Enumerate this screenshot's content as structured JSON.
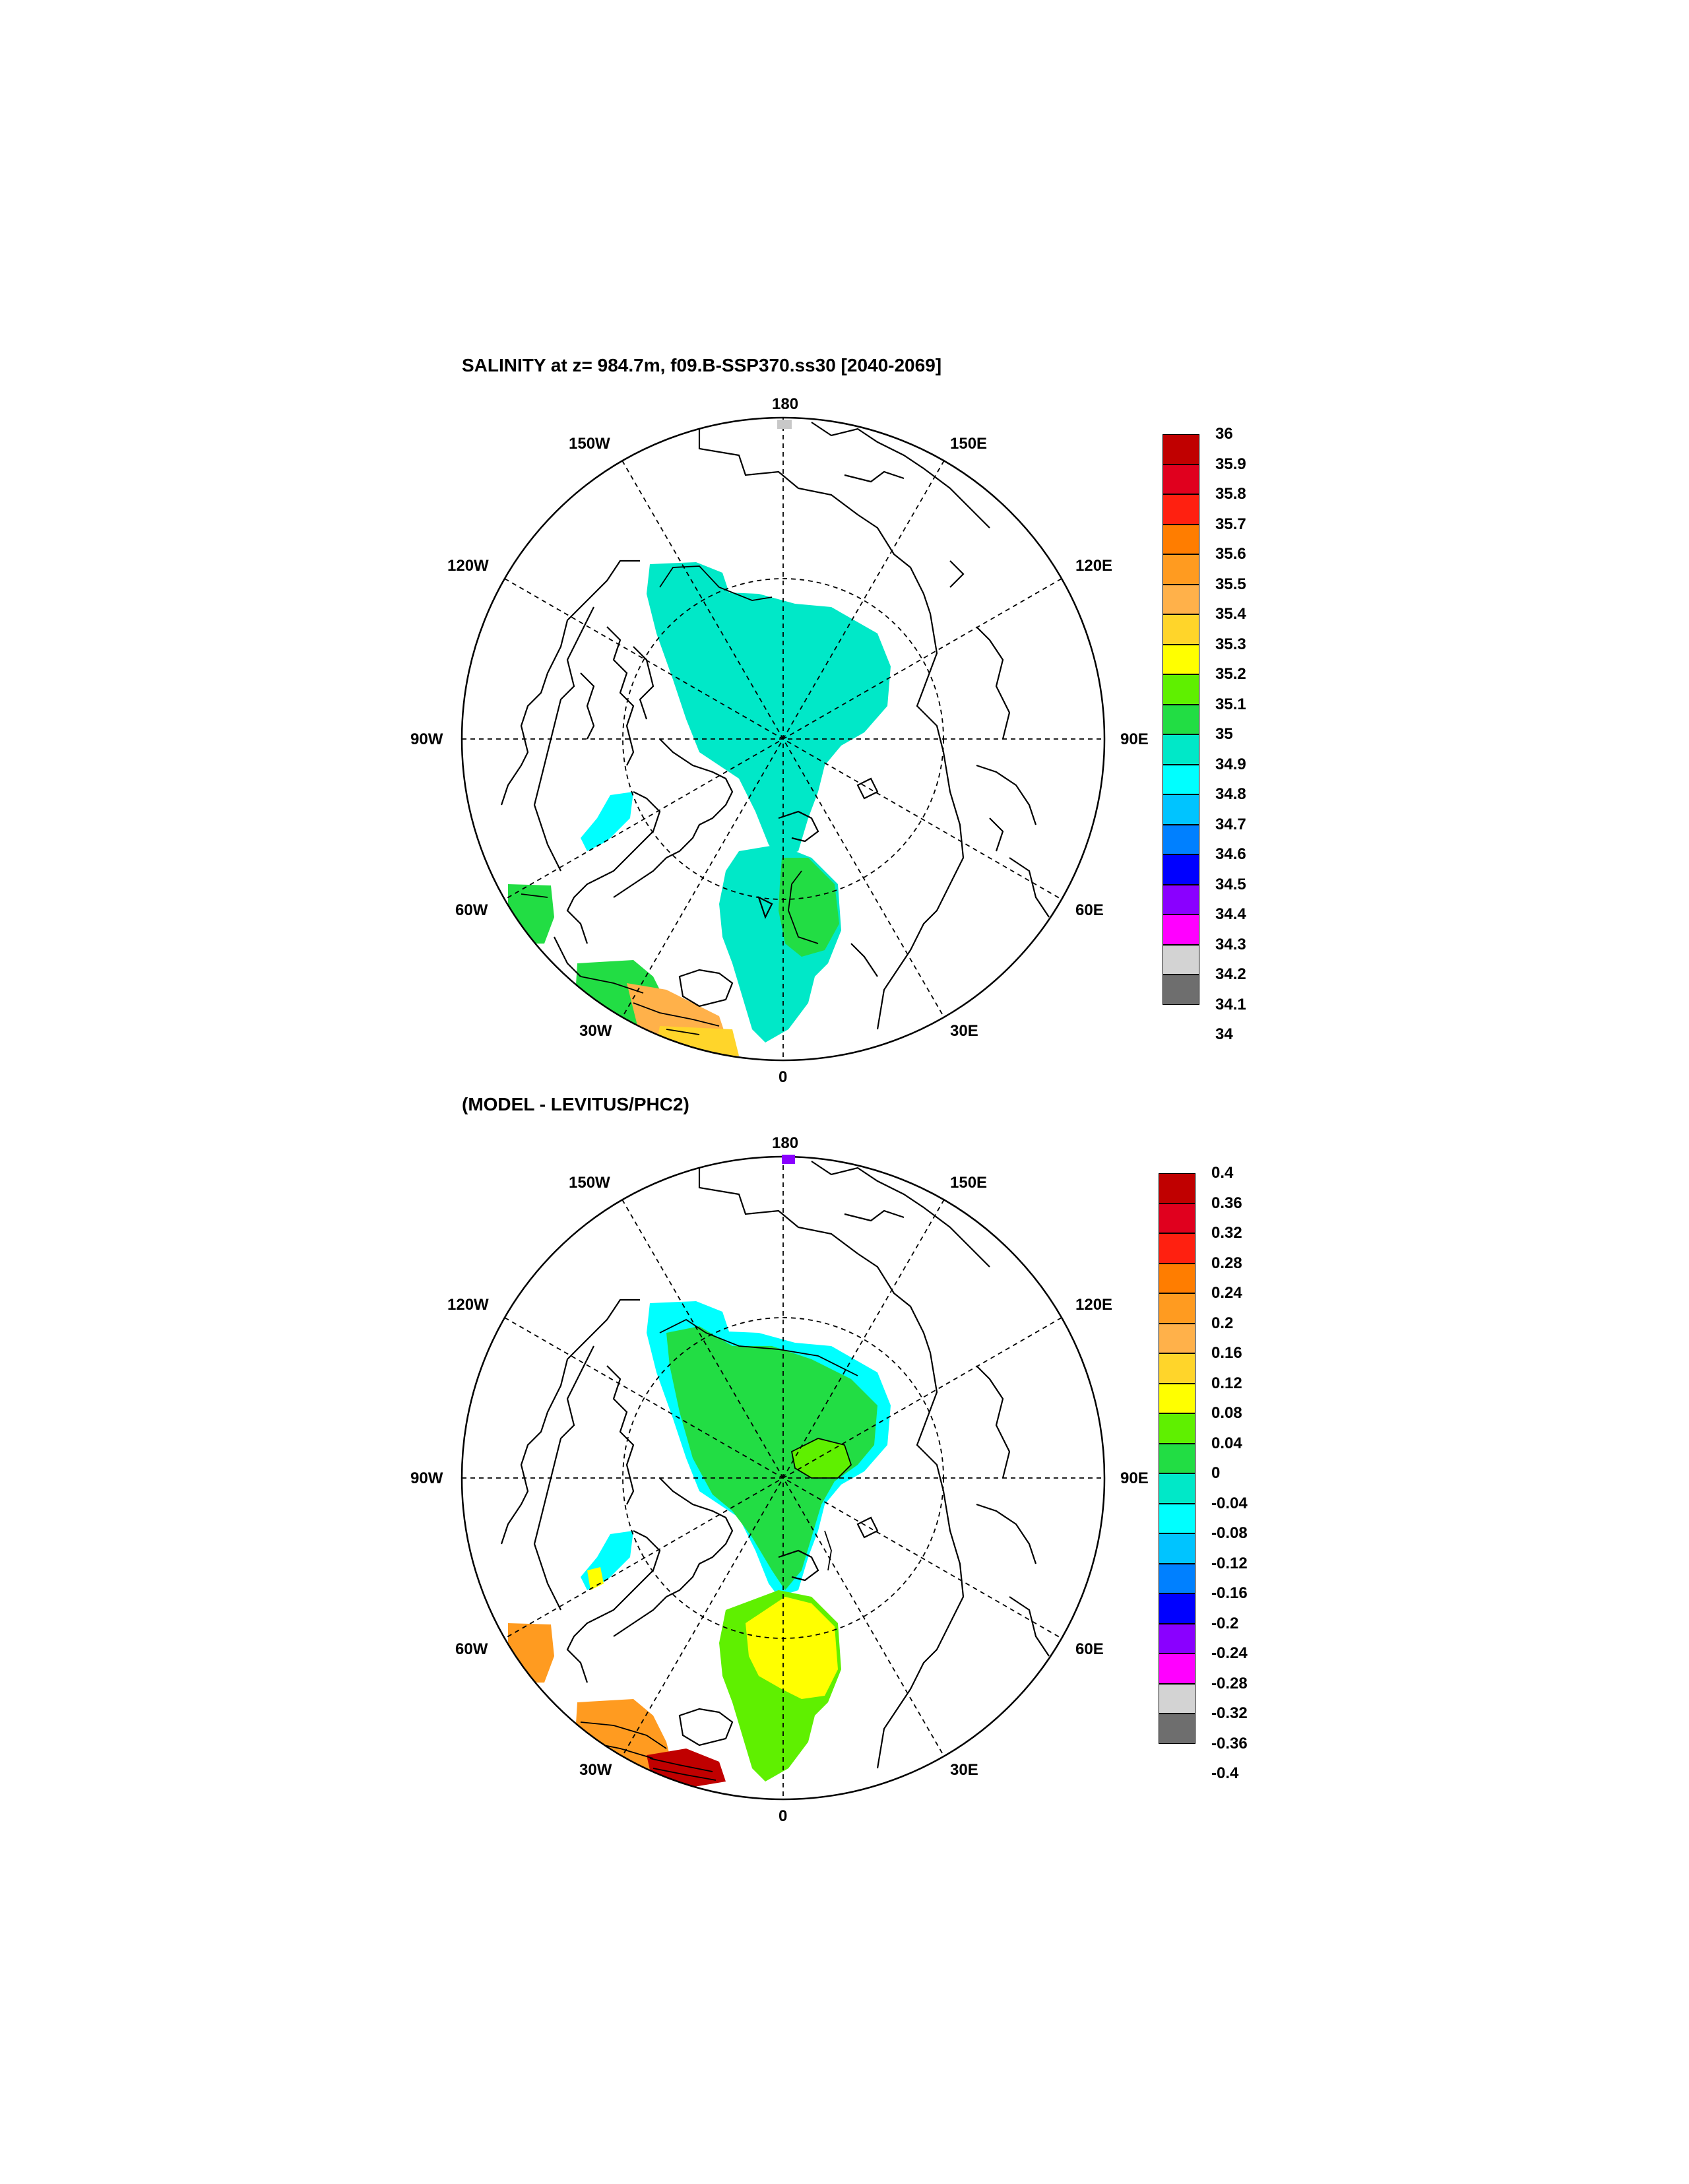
{
  "panels": [
    {
      "id": "salinity",
      "title": "SALINITY at z= 984.7m, f09.B-SSP370.ss30 [2040-2069]",
      "colorbar": {
        "ticks": [
          "36",
          "35.9",
          "35.8",
          "35.7",
          "35.6",
          "35.5",
          "35.4",
          "35.3",
          "35.2",
          "35.1",
          "35",
          "34.9",
          "34.8",
          "34.7",
          "34.6",
          "34.5",
          "34.4",
          "34.3",
          "34.2",
          "34.1",
          "34"
        ]
      }
    },
    {
      "id": "difference",
      "title": "(MODEL - LEVITUS/PHC2)",
      "colorbar": {
        "ticks": [
          "0.4",
          "0.36",
          "0.32",
          "0.28",
          "0.24",
          "0.2",
          "0.16",
          "0.12",
          "0.08",
          "0.04",
          "0",
          "-0.04",
          "-0.08",
          "-0.12",
          "-0.16",
          "-0.2",
          "-0.24",
          "-0.28",
          "-0.32",
          "-0.36",
          "-0.4"
        ]
      }
    }
  ],
  "colorbar_colors_top_to_bottom": [
    "#c00000",
    "#e0001e",
    "#ff2010",
    "#ff7d00",
    "#ff9b20",
    "#ffb14a",
    "#ffd52a",
    "#ffff00",
    "#5ff000",
    "#22dd44",
    "#00e8c8",
    "#00ffff",
    "#00c4ff",
    "#0080ff",
    "#0000ff",
    "#8a00ff",
    "#ff00ff",
    "#d3d3d3",
    "#6e6e6e"
  ],
  "map_labels": {
    "n180": "180",
    "w150": "150W",
    "e150": "150E",
    "w120": "120W",
    "e120": "120E",
    "w90": "90W",
    "e90": "90E",
    "w60": "60W",
    "e60": "60E",
    "w30": "30W",
    "e30": "30E",
    "s0": "0"
  }
}
